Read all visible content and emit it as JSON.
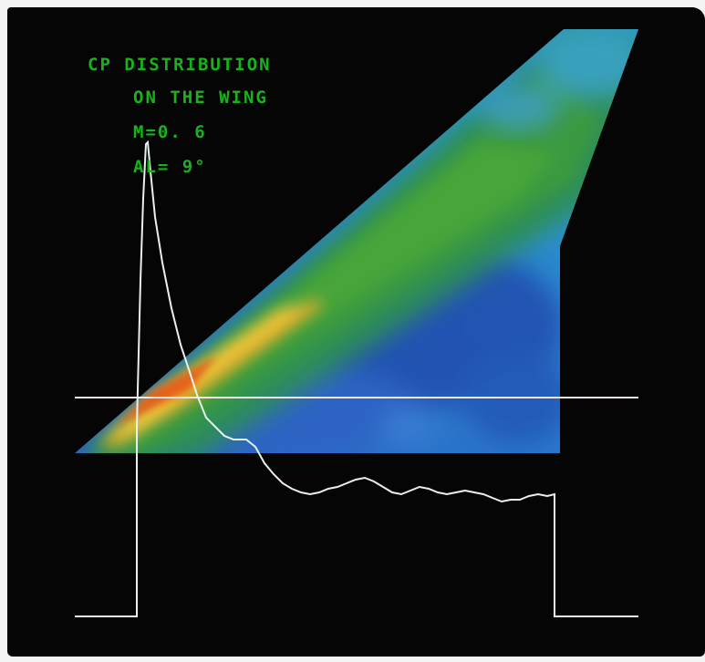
{
  "caption": {
    "line1": "CP DISTRIBUTION",
    "line2": "ON THE WING",
    "mach": "M=0. 6",
    "alpha": "AL= 9°"
  },
  "colors": {
    "background": "#050505",
    "caption_text": "#19b21c",
    "plot_line": "#e8f0f0",
    "contour_low": "#1f3f9c",
    "contour_mid": "#2a8a52",
    "contour_high": "#e8a020"
  }
}
